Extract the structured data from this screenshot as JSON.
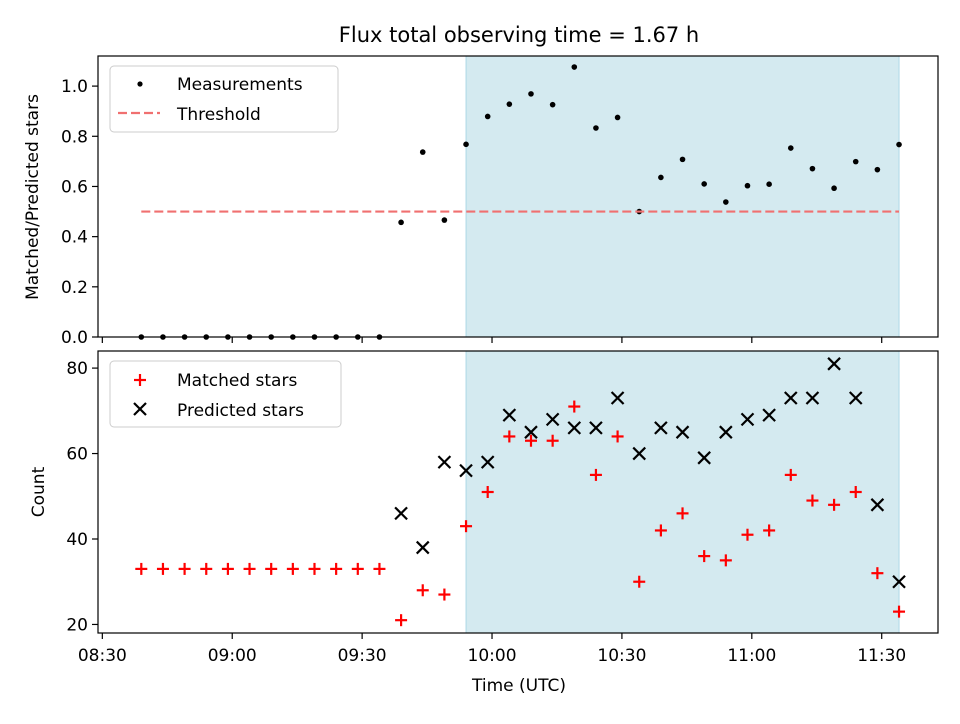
{
  "chart_data": {
    "title": "Flux total observing time = 1.67 h",
    "xlabel": "Time (UTC)",
    "x_ticks": [
      "08:30",
      "09:00",
      "09:30",
      "10:00",
      "10:30",
      "11:00",
      "11:30"
    ],
    "x_minutes_ticks": [
      510,
      540,
      570,
      600,
      630,
      660,
      690
    ],
    "xlim_minutes": [
      509,
      703
    ],
    "x": [
      "08:39",
      "08:44",
      "08:49",
      "08:54",
      "08:59",
      "09:04",
      "09:09",
      "09:14",
      "09:19",
      "09:24",
      "09:29",
      "09:34",
      "09:39",
      "09:44",
      "09:49",
      "09:54",
      "09:59",
      "10:04",
      "10:09",
      "10:14",
      "10:19",
      "10:24",
      "10:29",
      "10:34",
      "10:39",
      "10:44",
      "10:49",
      "10:54",
      "10:59",
      "11:04",
      "11:09",
      "11:14",
      "11:19",
      "11:24",
      "11:29",
      "11:34"
    ],
    "shaded_region": [
      "09:54",
      "11:34"
    ],
    "shade_color": "#d4eaf0",
    "panels": [
      {
        "type": "scatter",
        "ylabel": "Matched/Predicted stars",
        "ylim": [
          0,
          1.12
        ],
        "y_ticks": [
          "0.0",
          "0.2",
          "0.4",
          "0.6",
          "0.8",
          "1.0"
        ],
        "y_tick_values": [
          0,
          0.2,
          0.4,
          0.6,
          0.8,
          1.0
        ],
        "legend_position": "upper-left",
        "series": [
          {
            "name": "Measurements",
            "marker": "dot",
            "color": "#000000",
            "values": [
              0,
              0,
              0,
              0,
              0,
              0,
              0,
              0,
              0,
              0,
              0,
              0,
              0.457,
              0.737,
              0.466,
              0.768,
              0.879,
              0.928,
              0.969,
              0.926,
              1.076,
              0.833,
              0.875,
              0.5,
              0.636,
              0.708,
              0.61,
              0.538,
              0.603,
              0.609,
              0.753,
              0.671,
              0.593,
              0.699,
              0.667,
              0.767
            ]
          },
          {
            "name": "Threshold",
            "marker": "dashed-line",
            "color": "#f07070",
            "value": 0.5,
            "x_range": [
              "08:39",
              "11:34"
            ]
          }
        ]
      },
      {
        "type": "scatter",
        "ylabel": "Count",
        "ylim": [
          18,
          84
        ],
        "y_ticks": [
          "20",
          "40",
          "60",
          "80"
        ],
        "y_tick_values": [
          20,
          40,
          60,
          80
        ],
        "legend_position": "upper-left",
        "series": [
          {
            "name": "Matched stars",
            "marker": "plus",
            "color": "#ff0000",
            "values": [
              33,
              33,
              33,
              33,
              33,
              33,
              33,
              33,
              33,
              33,
              33,
              33,
              21,
              28,
              27,
              43,
              51,
              64,
              63,
              63,
              71,
              55,
              64,
              30,
              42,
              46,
              36,
              35,
              41,
              42,
              55,
              49,
              48,
              51,
              32,
              23
            ]
          },
          {
            "name": "Predicted stars",
            "marker": "x",
            "color": "#000000",
            "values": [
              null,
              null,
              null,
              null,
              null,
              null,
              null,
              null,
              null,
              null,
              null,
              null,
              46,
              38,
              58,
              56,
              58,
              69,
              65,
              68,
              66,
              66,
              73,
              60,
              66,
              65,
              59,
              65,
              68,
              69,
              73,
              73,
              81,
              73,
              48,
              30
            ]
          }
        ]
      }
    ]
  }
}
